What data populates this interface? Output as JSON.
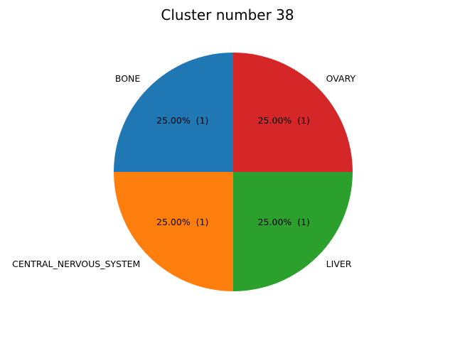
{
  "chart_data": {
    "type": "pie",
    "title": "Cluster number 38",
    "start_angle_deg": 90,
    "direction": "counterclockwise",
    "slices": [
      {
        "label": "BONE",
        "value": 1,
        "percent_label": "25.00%  (1)",
        "color": "#1f77b4"
      },
      {
        "label": "CENTRAL_NERVOUS_SYSTEM",
        "value": 1,
        "percent_label": "25.00%  (1)",
        "color": "#ff7f0e"
      },
      {
        "label": "LIVER",
        "value": 1,
        "percent_label": "25.00%  (1)",
        "color": "#2ca02c"
      },
      {
        "label": "OVARY",
        "value": 1,
        "percent_label": "25.00%  (1)",
        "color": "#d62728"
      }
    ]
  }
}
